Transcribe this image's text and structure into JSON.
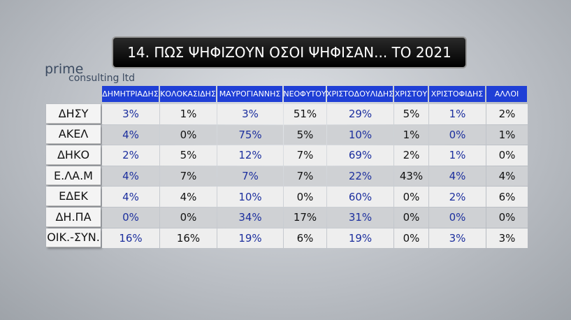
{
  "header": {
    "title": "14. ΠΩΣ ΨΗΦΙΖΟΥΝ ΟΣΟΙ ΨΗΦΙΣΑΝ... ΤΟ 2021"
  },
  "logo": {
    "name": "prime",
    "sub": "consulting ltd"
  },
  "table": {
    "columns": [
      "ΔΗΜΗΤΡΙΑΔΗΣ",
      "ΚΟΛΟΚΑΣΙΔΗΣ",
      "ΜΑΥΡΟΓΙΑΝΝΗΣ",
      "ΝΕΟΦΥΤΟΥ",
      "ΧΡΙΣΤΟΔΟΥΛΙΔΗΣ",
      "ΧΡΙΣΤΟΥ",
      "ΧΡΙΣΤΟΦΙΔΗΣ",
      "ΑΛΛΟΙ"
    ],
    "rows": [
      {
        "label": "ΔΗΣΥ",
        "cells": [
          "3%",
          "1%",
          "3%",
          "51%",
          "29%",
          "5%",
          "1%",
          "2%"
        ]
      },
      {
        "label": "ΑΚΕΛ",
        "cells": [
          "4%",
          "0%",
          "75%",
          "5%",
          "10%",
          "1%",
          "0%",
          "1%"
        ]
      },
      {
        "label": "ΔΗΚΟ",
        "cells": [
          "2%",
          "5%",
          "12%",
          "7%",
          "69%",
          "2%",
          "1%",
          "0%"
        ]
      },
      {
        "label": "Ε.ΛΑ.Μ",
        "cells": [
          "4%",
          "7%",
          "7%",
          "7%",
          "22%",
          "43%",
          "4%",
          "4%"
        ]
      },
      {
        "label": "ΕΔΕΚ",
        "cells": [
          "4%",
          "4%",
          "10%",
          "0%",
          "60%",
          "0%",
          "2%",
          "6%"
        ]
      },
      {
        "label": "ΔΗ.ΠΑ",
        "cells": [
          "0%",
          "0%",
          "34%",
          "17%",
          "31%",
          "0%",
          "0%",
          "0%"
        ]
      },
      {
        "label": "ΟΙΚ.-ΣΥΝ.",
        "cells": [
          "16%",
          "16%",
          "19%",
          "6%",
          "19%",
          "0%",
          "3%",
          "3%"
        ]
      }
    ]
  }
}
